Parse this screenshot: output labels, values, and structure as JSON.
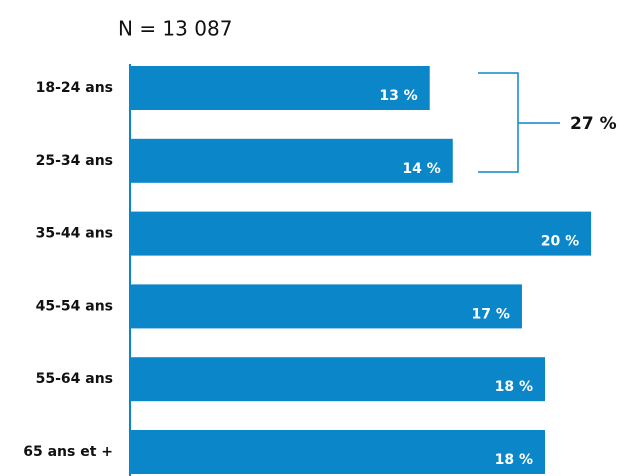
{
  "chart_data": {
    "type": "hbar",
    "title": "N = 13 087",
    "categories": [
      "18-24 ans",
      "25-34 ans",
      "35-44 ans",
      "45-54 ans",
      "55-64 ans",
      "65 ans et +"
    ],
    "values": [
      13,
      14,
      20,
      17,
      18,
      18
    ],
    "value_labels": [
      "13 %",
      "14 %",
      "20 %",
      "17 %",
      "18 %",
      "18 %"
    ],
    "color": "#0b87c9",
    "xlim": [
      0,
      21.6
    ],
    "annotations": [
      {
        "text": "27 %"
      }
    ]
  }
}
